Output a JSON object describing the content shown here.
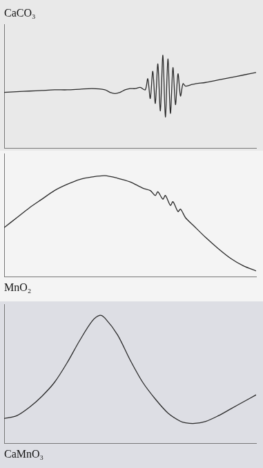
{
  "chart_data": [
    {
      "type": "line",
      "title": "CaCO₃",
      "color": "#2a2a2a",
      "grid": false,
      "tick_labels": false,
      "xlim": [
        0,
        100
      ],
      "ylim": [
        0,
        100
      ],
      "x": [
        0,
        5,
        10,
        15,
        20,
        25,
        30,
        35,
        40,
        42,
        44,
        46,
        48,
        50,
        52,
        54,
        56,
        57,
        58,
        59,
        60,
        61,
        62,
        63,
        64,
        65,
        66,
        67,
        68,
        69,
        70,
        71,
        72,
        74,
        76,
        80,
        85,
        90,
        95,
        100
      ],
      "values": [
        45,
        45.5,
        46,
        46.5,
        47,
        47,
        47.5,
        48,
        47,
        45,
        44,
        45,
        47,
        48,
        48,
        49,
        47,
        56,
        40,
        62,
        36,
        68,
        30,
        75,
        25,
        72,
        28,
        65,
        35,
        60,
        42,
        52,
        50,
        51,
        52,
        53,
        55,
        57,
        59,
        61
      ]
    },
    {
      "type": "line",
      "title": "MnO₂",
      "color": "#2a2a2a",
      "grid": false,
      "tick_labels": false,
      "xlim": [
        0,
        100
      ],
      "ylim": [
        0,
        100
      ],
      "x": [
        0,
        5,
        10,
        15,
        20,
        25,
        30,
        35,
        40,
        45,
        50,
        55,
        58,
        60,
        61,
        63,
        64,
        66,
        67,
        69,
        70,
        72,
        75,
        80,
        85,
        90,
        95,
        100
      ],
      "values": [
        40,
        48,
        56,
        63,
        70,
        75,
        79,
        81,
        82,
        80,
        77,
        72,
        70,
        66,
        69,
        63,
        66,
        58,
        61,
        53,
        55,
        48,
        42,
        32,
        23,
        15,
        9,
        5
      ]
    },
    {
      "type": "line",
      "title": "CaMnO₃",
      "color": "#2a2a2a",
      "grid": false,
      "tick_labels": false,
      "xlim": [
        0,
        100
      ],
      "ylim": [
        0,
        100
      ],
      "x": [
        0,
        5,
        10,
        15,
        20,
        25,
        30,
        35,
        38,
        40,
        45,
        50,
        55,
        60,
        65,
        70,
        72,
        75,
        80,
        85,
        90,
        95,
        100
      ],
      "values": [
        18,
        20,
        26,
        34,
        44,
        58,
        74,
        88,
        92,
        90,
        78,
        60,
        44,
        32,
        22,
        16,
        15,
        14.5,
        16,
        20,
        25,
        30,
        35
      ]
    }
  ]
}
